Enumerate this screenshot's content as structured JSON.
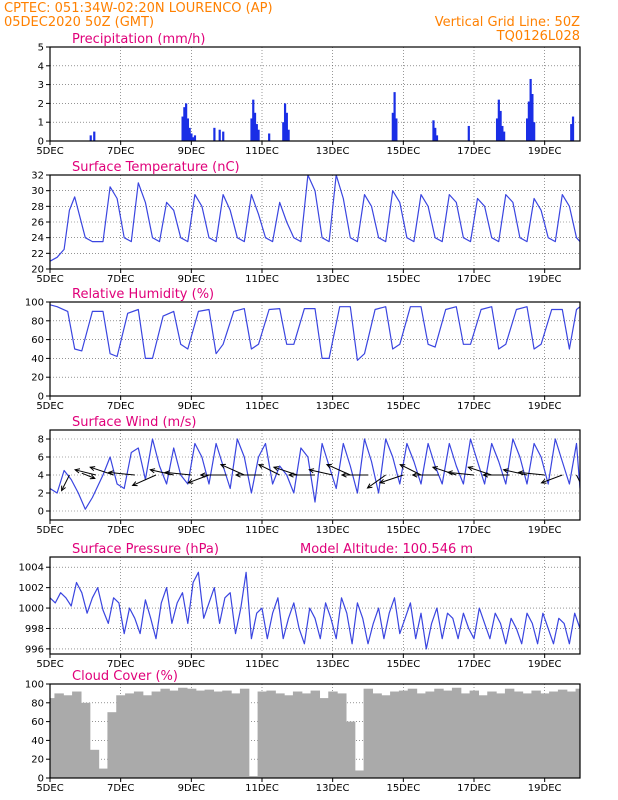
{
  "header": {
    "line1": "CPTEC:   051:34W-02:20N   LOURENCO (AP)",
    "line2_left": "05DEC2020 50Z (GMT)",
    "line2_right": "Vertical Grid Line: 50Z",
    "code": "TQ0126L028"
  },
  "x_ticks": [
    "5DEC",
    "7DEC",
    "9DEC",
    "11DEC",
    "13DEC",
    "15DEC",
    "17DEC",
    "19DEC"
  ],
  "colors": {
    "line": "#3a45e0",
    "bar": "#1a2ee6",
    "cloud": "#aaaaaa",
    "arrow": "#000000",
    "header": "#ff8000",
    "title": "#e0007a"
  },
  "chart_data": [
    {
      "type": "bar",
      "title": "Precipitation  (mm/h)",
      "xlim": [
        5,
        20
      ],
      "ylim": [
        0,
        5
      ],
      "yticks": [
        0,
        1,
        2,
        3,
        4,
        5
      ],
      "x": [
        6.15,
        6.25,
        8.75,
        8.8,
        8.85,
        8.9,
        8.95,
        9.0,
        9.05,
        9.1,
        9.65,
        9.8,
        9.9,
        10.7,
        10.75,
        10.8,
        10.85,
        10.9,
        11.2,
        11.6,
        11.65,
        11.7,
        11.75,
        14.7,
        14.75,
        14.8,
        15.85,
        15.9,
        15.95,
        16.85,
        17.65,
        17.7,
        17.75,
        17.8,
        17.85,
        18.5,
        18.55,
        18.6,
        18.65,
        18.7,
        19.75,
        19.8
      ],
      "values": [
        0.3,
        0.5,
        1.3,
        1.8,
        2.0,
        1.2,
        0.7,
        0.4,
        0.2,
        0.3,
        0.7,
        0.6,
        0.5,
        1.2,
        2.2,
        1.5,
        0.9,
        0.6,
        0.4,
        1.0,
        2.0,
        1.5,
        0.6,
        1.5,
        2.6,
        1.2,
        1.1,
        0.7,
        0.3,
        0.8,
        1.2,
        2.2,
        1.6,
        0.8,
        0.5,
        1.2,
        2.1,
        3.3,
        2.5,
        1.0,
        0.9,
        1.3
      ]
    },
    {
      "type": "line",
      "title": "Surface Temperature (nC)",
      "xlim": [
        5,
        20
      ],
      "ylim": [
        20,
        32
      ],
      "yticks": [
        20,
        22,
        24,
        26,
        28,
        30,
        32
      ],
      "x": [
        5.0,
        5.2,
        5.4,
        5.55,
        5.7,
        6.0,
        6.2,
        6.5,
        6.7,
        6.9,
        7.1,
        7.3,
        7.5,
        7.7,
        7.9,
        8.1,
        8.3,
        8.5,
        8.7,
        8.9,
        9.1,
        9.3,
        9.5,
        9.7,
        9.9,
        10.1,
        10.3,
        10.5,
        10.7,
        10.9,
        11.1,
        11.3,
        11.5,
        11.7,
        11.9,
        12.1,
        12.3,
        12.5,
        12.7,
        12.9,
        13.1,
        13.3,
        13.5,
        13.7,
        13.9,
        14.1,
        14.3,
        14.5,
        14.7,
        14.9,
        15.1,
        15.3,
        15.5,
        15.7,
        15.9,
        16.1,
        16.3,
        16.5,
        16.7,
        16.9,
        17.1,
        17.3,
        17.5,
        17.7,
        17.9,
        18.1,
        18.3,
        18.5,
        18.7,
        18.9,
        19.1,
        19.3,
        19.5,
        19.7,
        19.9,
        20.0
      ],
      "values": [
        21.0,
        21.5,
        22.5,
        27.5,
        29.2,
        24.0,
        23.5,
        23.5,
        30.5,
        29.0,
        24.0,
        23.5,
        31.0,
        28.5,
        24.0,
        23.5,
        28.5,
        27.5,
        24.0,
        23.5,
        29.5,
        28.0,
        24.0,
        23.5,
        29.5,
        27.5,
        24.0,
        23.5,
        29.5,
        27.0,
        24.0,
        23.5,
        28.5,
        26.0,
        24.0,
        23.5,
        32.0,
        30.0,
        24.0,
        23.5,
        32.0,
        29.0,
        24.0,
        23.5,
        29.5,
        28.0,
        24.0,
        23.5,
        30.0,
        28.5,
        24.0,
        23.5,
        29.5,
        28.0,
        24.0,
        23.5,
        29.5,
        28.5,
        24.0,
        23.5,
        29.0,
        28.0,
        24.0,
        23.5,
        29.5,
        28.5,
        24.0,
        23.5,
        29.0,
        27.5,
        24.0,
        23.5,
        29.5,
        28.0,
        24.0,
        23.5
      ]
    },
    {
      "type": "line",
      "title": "Relative Humidity (%)",
      "xlim": [
        5,
        20
      ],
      "ylim": [
        0,
        100
      ],
      "yticks": [
        0,
        20,
        40,
        60,
        80,
        100
      ],
      "x": [
        5.0,
        5.2,
        5.5,
        5.7,
        5.9,
        6.2,
        6.5,
        6.7,
        6.9,
        7.2,
        7.5,
        7.7,
        7.9,
        8.2,
        8.5,
        8.7,
        8.9,
        9.2,
        9.5,
        9.7,
        9.9,
        10.2,
        10.5,
        10.7,
        10.9,
        11.2,
        11.5,
        11.7,
        11.9,
        12.2,
        12.5,
        12.7,
        12.9,
        13.2,
        13.5,
        13.7,
        13.9,
        14.2,
        14.5,
        14.7,
        14.9,
        15.2,
        15.5,
        15.7,
        15.9,
        16.2,
        16.5,
        16.7,
        16.9,
        17.2,
        17.5,
        17.7,
        17.9,
        18.2,
        18.5,
        18.7,
        18.9,
        19.2,
        19.5,
        19.7,
        19.9,
        20.0
      ],
      "values": [
        97,
        95,
        90,
        50,
        48,
        90,
        90,
        45,
        42,
        88,
        92,
        40,
        40,
        85,
        90,
        55,
        50,
        90,
        92,
        45,
        55,
        90,
        93,
        50,
        55,
        92,
        93,
        55,
        55,
        93,
        93,
        40,
        40,
        95,
        95,
        38,
        45,
        92,
        95,
        50,
        55,
        95,
        95,
        55,
        52,
        92,
        95,
        55,
        55,
        92,
        95,
        50,
        55,
        92,
        95,
        50,
        55,
        92,
        92,
        50,
        92,
        95
      ]
    },
    {
      "type": "line",
      "title": "Surface Wind (m/s)",
      "xlim": [
        5,
        20
      ],
      "ylim": [
        -1,
        9
      ],
      "yticks": [
        0,
        2,
        4,
        6,
        8
      ],
      "x": [
        5.0,
        5.2,
        5.4,
        5.6,
        5.8,
        6.0,
        6.2,
        6.5,
        6.7,
        6.9,
        7.1,
        7.3,
        7.5,
        7.7,
        7.9,
        8.1,
        8.3,
        8.5,
        8.7,
        8.9,
        9.1,
        9.3,
        9.5,
        9.7,
        9.9,
        10.1,
        10.3,
        10.5,
        10.7,
        10.9,
        11.1,
        11.3,
        11.5,
        11.7,
        11.9,
        12.1,
        12.3,
        12.5,
        12.7,
        12.9,
        13.1,
        13.3,
        13.5,
        13.7,
        13.9,
        14.1,
        14.3,
        14.5,
        14.7,
        14.9,
        15.1,
        15.3,
        15.5,
        15.7,
        15.9,
        16.1,
        16.3,
        16.5,
        16.7,
        16.9,
        17.1,
        17.3,
        17.5,
        17.7,
        17.9,
        18.1,
        18.3,
        18.5,
        18.7,
        18.9,
        19.1,
        19.3,
        19.5,
        19.7,
        19.9,
        20.0
      ],
      "values": [
        2.5,
        2.0,
        4.5,
        3.5,
        2.0,
        0.2,
        1.5,
        4.0,
        6.0,
        3.0,
        2.5,
        6.5,
        7.0,
        3.5,
        8.0,
        5.0,
        3.0,
        7.0,
        4.0,
        3.0,
        7.5,
        6.0,
        3.0,
        7.5,
        5.0,
        2.5,
        8.0,
        6.0,
        2.0,
        6.0,
        7.5,
        3.0,
        5.0,
        4.0,
        2.0,
        7.0,
        6.0,
        1.0,
        7.5,
        5.0,
        2.5,
        7.5,
        5.0,
        2.0,
        8.0,
        5.5,
        2.0,
        8.0,
        6.0,
        3.0,
        7.5,
        5.5,
        3.0,
        7.5,
        5.0,
        3.0,
        7.5,
        5.0,
        3.0,
        8.0,
        5.5,
        3.0,
        7.5,
        5.5,
        3.0,
        8.0,
        6.0,
        3.0,
        7.5,
        6.0,
        3.0,
        8.0,
        5.5,
        3.0,
        7.5,
        2.5
      ],
      "vectors": [
        {
          "x": 5.55,
          "y": 4.0,
          "u": -0.3,
          "v": -0.6
        },
        {
          "x": 5.9,
          "y": 4.2,
          "u": 0.5,
          "v": -0.2
        },
        {
          "x": 6.3,
          "y": 4.0,
          "u": -0.8,
          "v": 0.2
        },
        {
          "x": 6.8,
          "y": 4.0,
          "u": -0.9,
          "v": 0.3
        },
        {
          "x": 7.4,
          "y": 4.0,
          "u": -1.0,
          "v": 0.1
        },
        {
          "x": 8.0,
          "y": 4.0,
          "u": -0.9,
          "v": -0.4
        },
        {
          "x": 8.5,
          "y": 4.0,
          "u": -0.9,
          "v": 0.2
        },
        {
          "x": 9.0,
          "y": 4.0,
          "u": -1.0,
          "v": 0.1
        },
        {
          "x": 9.5,
          "y": 4.0,
          "u": -0.8,
          "v": -0.3
        },
        {
          "x": 10.0,
          "y": 4.0,
          "u": -1.0,
          "v": 0.0
        },
        {
          "x": 10.5,
          "y": 4.0,
          "u": -0.9,
          "v": 0.4
        },
        {
          "x": 11.0,
          "y": 4.0,
          "u": -1.0,
          "v": 0.0
        },
        {
          "x": 11.5,
          "y": 4.0,
          "u": -0.8,
          "v": 0.4
        },
        {
          "x": 12.0,
          "y": 4.0,
          "u": -0.9,
          "v": 0.3
        },
        {
          "x": 12.5,
          "y": 4.0,
          "u": -1.0,
          "v": 0.0
        },
        {
          "x": 13.0,
          "y": 4.0,
          "u": -0.9,
          "v": 0.2
        },
        {
          "x": 13.5,
          "y": 4.0,
          "u": -0.9,
          "v": 0.4
        },
        {
          "x": 14.0,
          "y": 4.0,
          "u": -1.0,
          "v": 0.0
        },
        {
          "x": 14.5,
          "y": 4.0,
          "u": -0.7,
          "v": -0.5
        },
        {
          "x": 15.0,
          "y": 4.0,
          "u": -0.9,
          "v": -0.3
        },
        {
          "x": 15.5,
          "y": 4.0,
          "u": -0.8,
          "v": 0.4
        },
        {
          "x": 16.0,
          "y": 4.0,
          "u": -1.0,
          "v": 0.0
        },
        {
          "x": 16.5,
          "y": 4.0,
          "u": -0.9,
          "v": 0.3
        },
        {
          "x": 17.0,
          "y": 4.0,
          "u": -1.0,
          "v": 0.1
        },
        {
          "x": 17.5,
          "y": 4.0,
          "u": -0.9,
          "v": 0.3
        },
        {
          "x": 18.0,
          "y": 4.0,
          "u": -1.0,
          "v": 0.0
        },
        {
          "x": 18.5,
          "y": 4.0,
          "u": -0.9,
          "v": 0.2
        },
        {
          "x": 19.0,
          "y": 4.0,
          "u": -1.0,
          "v": 0.1
        },
        {
          "x": 19.5,
          "y": 4.0,
          "u": -0.8,
          "v": -0.3
        },
        {
          "x": 19.9,
          "y": 4.0,
          "u": 0.3,
          "v": -0.6
        }
      ]
    },
    {
      "type": "line",
      "title": "Surface Pressure (hPa)",
      "annotation": "Model Altitude: 100.546  m",
      "xlim": [
        5,
        20
      ],
      "ylim": [
        995.5,
        1005
      ],
      "yticks": [
        996,
        998,
        1000,
        1002,
        1004
      ],
      "x": [
        5.0,
        5.15,
        5.3,
        5.45,
        5.6,
        5.75,
        5.9,
        6.05,
        6.2,
        6.35,
        6.5,
        6.65,
        6.8,
        6.95,
        7.1,
        7.25,
        7.4,
        7.55,
        7.7,
        7.85,
        8.0,
        8.15,
        8.3,
        8.45,
        8.6,
        8.75,
        8.9,
        9.05,
        9.2,
        9.35,
        9.5,
        9.65,
        9.8,
        9.95,
        10.1,
        10.25,
        10.4,
        10.55,
        10.7,
        10.85,
        11.0,
        11.15,
        11.3,
        11.45,
        11.6,
        11.75,
        11.9,
        12.05,
        12.2,
        12.35,
        12.5,
        12.65,
        12.8,
        12.95,
        13.1,
        13.25,
        13.4,
        13.55,
        13.7,
        13.85,
        14.0,
        14.15,
        14.3,
        14.45,
        14.6,
        14.75,
        14.9,
        15.05,
        15.2,
        15.35,
        15.5,
        15.65,
        15.8,
        15.95,
        16.1,
        16.25,
        16.4,
        16.55,
        16.7,
        16.85,
        17.0,
        17.15,
        17.3,
        17.45,
        17.6,
        17.75,
        17.9,
        18.05,
        18.2,
        18.35,
        18.5,
        18.65,
        18.8,
        18.95,
        19.1,
        19.25,
        19.4,
        19.55,
        19.7,
        19.85,
        20.0
      ],
      "values": [
        1001.0,
        1000.5,
        1001.5,
        1001.0,
        1000.2,
        1002.5,
        1001.5,
        999.5,
        1001.0,
        1002.0,
        999.8,
        998.5,
        1001.0,
        1000.5,
        997.5,
        1000.0,
        999.0,
        997.5,
        1000.8,
        999.0,
        997.0,
        1000.5,
        1002.0,
        998.5,
        1000.5,
        1001.5,
        998.5,
        1002.5,
        1003.5,
        999.0,
        1000.5,
        1002.0,
        998.5,
        1001.0,
        1001.5,
        997.5,
        1000.0,
        1003.5,
        997.0,
        999.5,
        1000.0,
        997.0,
        999.5,
        1001.0,
        997.0,
        999.0,
        1000.5,
        998.0,
        996.5,
        1000.0,
        999.0,
        997.0,
        1000.5,
        999.0,
        997.0,
        1001.0,
        999.5,
        996.5,
        1000.5,
        999.0,
        996.5,
        998.5,
        1000.0,
        997.0,
        999.5,
        1001.0,
        997.5,
        999.0,
        1000.5,
        997.0,
        999.5,
        996.0,
        998.5,
        1000.0,
        997.0,
        999.5,
        999.0,
        997.0,
        999.5,
        998.0,
        997.0,
        1000.0,
        998.5,
        997.0,
        999.5,
        998.5,
        996.5,
        999.0,
        998.0,
        996.5,
        999.5,
        998.5,
        996.5,
        999.5,
        998.0,
        996.5,
        999.0,
        998.5,
        996.5,
        999.5,
        998.0
      ]
    },
    {
      "type": "bar",
      "title": "Cloud Cover (%)",
      "xlim": [
        5,
        20
      ],
      "ylim": [
        0,
        100
      ],
      "yticks": [
        0,
        20,
        40,
        60,
        80,
        100
      ],
      "x": [
        5.0,
        5.25,
        5.5,
        5.75,
        6.0,
        6.25,
        6.5,
        6.75,
        7.0,
        7.25,
        7.5,
        7.75,
        8.0,
        8.25,
        8.5,
        8.75,
        9.0,
        9.25,
        9.5,
        9.75,
        10.0,
        10.25,
        10.5,
        10.75,
        11.0,
        11.25,
        11.5,
        11.75,
        12.0,
        12.25,
        12.5,
        12.75,
        13.0,
        13.25,
        13.5,
        13.75,
        14.0,
        14.25,
        14.5,
        14.75,
        15.0,
        15.25,
        15.5,
        15.75,
        16.0,
        16.25,
        16.5,
        16.75,
        17.0,
        17.25,
        17.5,
        17.75,
        18.0,
        18.25,
        18.5,
        18.75,
        19.0,
        19.25,
        19.5,
        19.75,
        20.0
      ],
      "values": [
        85,
        90,
        88,
        92,
        80,
        30,
        10,
        70,
        88,
        90,
        92,
        88,
        92,
        95,
        93,
        96,
        95,
        93,
        94,
        92,
        93,
        90,
        95,
        2,
        92,
        93,
        90,
        88,
        92,
        90,
        93,
        85,
        92,
        90,
        60,
        8,
        95,
        90,
        88,
        92,
        93,
        95,
        90,
        92,
        95,
        93,
        96,
        90,
        93,
        88,
        92,
        90,
        95,
        92,
        90,
        93,
        90,
        92,
        94,
        92,
        95
      ]
    }
  ]
}
